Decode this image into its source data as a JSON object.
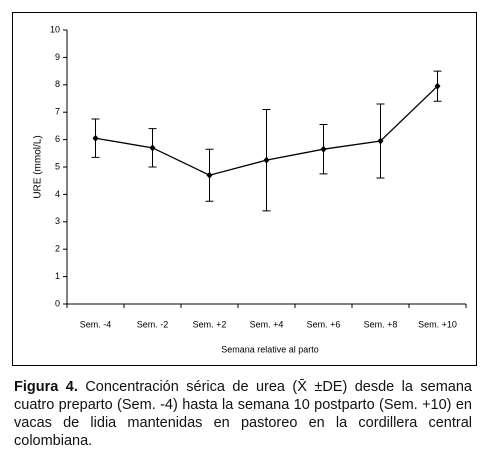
{
  "chart_data": {
    "type": "line",
    "xlabel": "Semana relative al parto",
    "ylabel": "URE (mmol/L)",
    "categories": [
      "Sem. -4",
      "Sem. -2",
      "Sem. +2",
      "Sem. +4",
      "Sem. +6",
      "Sem. +8",
      "Sem. +10"
    ],
    "values": [
      6.05,
      5.7,
      4.7,
      5.25,
      5.65,
      5.95,
      7.95
    ],
    "errors": [
      0.7,
      0.7,
      0.95,
      1.85,
      0.9,
      1.35,
      0.55
    ],
    "color": "#000000",
    "ylim": [
      0,
      10
    ],
    "yticks": [
      0,
      1,
      2,
      3,
      4,
      5,
      6,
      7,
      8,
      9,
      10
    ]
  },
  "caption": {
    "label": "Figura 4.",
    "text": "Concentración sérica de urea (X̄ ±DE) desde la semana cuatro preparto (Sem. -4) hasta la semana 10 postparto (Sem. +10) en vacas de lidia mantenidas en pastoreo en la cordillera central colombiana."
  }
}
